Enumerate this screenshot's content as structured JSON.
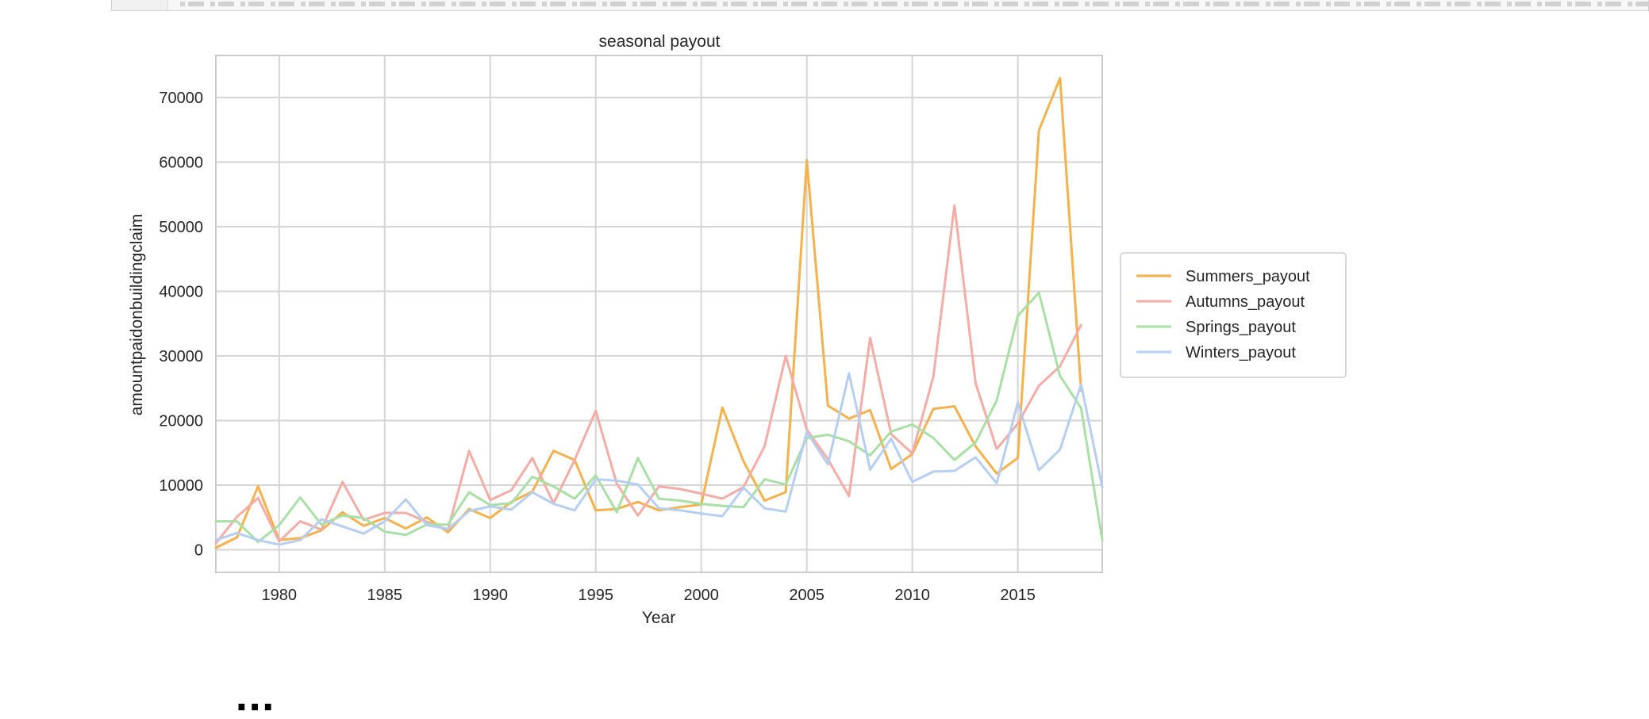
{
  "notebook": {
    "next_heading": "..."
  },
  "chart_data": {
    "type": "line",
    "title": "seasonal payout",
    "xlabel": "Year",
    "ylabel": "amountpaidonbuildingclaim",
    "xlim": [
      1977,
      2019
    ],
    "ylim": [
      -3500,
      76500
    ],
    "xticks": [
      1980,
      1985,
      1990,
      1995,
      2000,
      2005,
      2010,
      2015
    ],
    "yticks": [
      0,
      10000,
      20000,
      30000,
      40000,
      50000,
      60000,
      70000
    ],
    "grid": true,
    "legend_position": "right",
    "x": [
      1977,
      1978,
      1979,
      1980,
      1981,
      1982,
      1983,
      1984,
      1985,
      1986,
      1987,
      1988,
      1989,
      1990,
      1991,
      1992,
      1993,
      1994,
      1995,
      1996,
      1997,
      1998,
      1999,
      2000,
      2001,
      2002,
      2003,
      2004,
      2005,
      2006,
      2007,
      2008,
      2009,
      2010,
      2011,
      2012,
      2013,
      2014,
      2015,
      2016,
      2017,
      2018,
      2019
    ],
    "series": [
      {
        "name": "Summers_payout",
        "color": "#f5b14c",
        "values": [
          300,
          1900,
          9800,
          1500,
          1800,
          3000,
          5800,
          3700,
          4900,
          3300,
          5000,
          2700,
          6300,
          4900,
          7400,
          9000,
          15300,
          13900,
          6100,
          6300,
          7400,
          6100,
          6600,
          7000,
          22000,
          13700,
          7600,
          8900,
          60300,
          22300,
          20300,
          21600,
          12500,
          14800,
          21800,
          22200,
          16000,
          11800,
          14200,
          64900,
          73000,
          24600,
          null
        ]
      },
      {
        "name": "Autumns_payout",
        "color": "#f4aca6",
        "values": [
          1000,
          5100,
          8000,
          1300,
          4400,
          3100,
          10500,
          4600,
          5700,
          5700,
          4300,
          3100,
          15300,
          7700,
          9200,
          14200,
          7200,
          13900,
          21500,
          10200,
          5300,
          9800,
          9400,
          8700,
          7900,
          9700,
          16000,
          30000,
          18600,
          14000,
          8300,
          32800,
          17900,
          14900,
          26800,
          53300,
          25800,
          15600,
          19500,
          25400,
          28400,
          34800,
          null
        ]
      },
      {
        "name": "Springs_payout",
        "color": "#a8dfa5",
        "values": [
          4400,
          4400,
          1200,
          3800,
          8100,
          3900,
          5300,
          4900,
          2800,
          2300,
          3900,
          3900,
          8900,
          6900,
          7200,
          11300,
          9800,
          7900,
          11500,
          5800,
          14200,
          7900,
          7600,
          7100,
          6800,
          6600,
          10900,
          10100,
          17300,
          17800,
          16800,
          14600,
          18300,
          19400,
          17300,
          13900,
          16600,
          23100,
          36200,
          39800,
          26900,
          21900,
          1500
        ]
      },
      {
        "name": "Winters_payout",
        "color": "#b6cef0",
        "values": [
          1500,
          2600,
          1500,
          800,
          1500,
          4700,
          3600,
          2500,
          4400,
          7800,
          3800,
          3200,
          6000,
          6700,
          6200,
          8900,
          7100,
          6100,
          10900,
          10700,
          10100,
          6400,
          6100,
          5600,
          5200,
          9600,
          6400,
          5900,
          18200,
          13200,
          27300,
          12400,
          17200,
          10500,
          12100,
          12200,
          14300,
          10300,
          22800,
          12300,
          15500,
          25600,
          9700
        ]
      }
    ]
  }
}
